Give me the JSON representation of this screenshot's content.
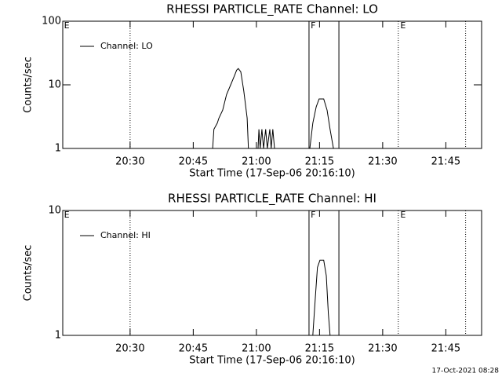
{
  "chart_data": [
    {
      "type": "line",
      "title": "RHESSI PARTICLE_RATE Channel: LO",
      "xlabel": "Start Time (17-Sep-06 20:16:10)",
      "ylabel": "Counts/sec",
      "log_y": true,
      "grid": false,
      "legend": "upper left",
      "xlim": [
        1214,
        1313.5
      ],
      "xticks": [
        {
          "value": 1230,
          "label": "20:30"
        },
        {
          "value": 1245,
          "label": "20:45"
        },
        {
          "value": 1260,
          "label": "21:00"
        },
        {
          "value": 1275,
          "label": "21:15"
        },
        {
          "value": 1290,
          "label": "21:30"
        },
        {
          "value": 1305,
          "label": "21:45"
        }
      ],
      "ylim": [
        1,
        100
      ],
      "yticks": [
        1,
        10,
        100
      ],
      "markers": [
        {
          "x": 1230,
          "style": "dotted"
        },
        {
          "x": 1272.5,
          "style": "solid"
        },
        {
          "x": 1279.6,
          "style": "solid"
        },
        {
          "x": 1293.7,
          "style": "dotted"
        },
        {
          "x": 1309.7,
          "style": "dotted"
        }
      ],
      "annotations": [
        {
          "text": "E",
          "x": 1214.3
        },
        {
          "text": "F",
          "x": 1272.9
        },
        {
          "text": "E",
          "x": 1294.2
        }
      ],
      "series": [
        {
          "name": "Channel: LO",
          "color": "#000000",
          "x": [
            1249.6,
            1249.9,
            1250.7,
            1251.1,
            1252.0,
            1252.9,
            1253.9,
            1254.8,
            1255.3,
            1255.7,
            1256.3,
            1257.0,
            1257.8,
            1258.1,
            1260.4,
            1260.6,
            1260.9,
            1261.3,
            1261.7,
            1262.2,
            1262.6,
            1263.2,
            1263.5,
            1263.9,
            1264.3,
            1272.7,
            1273.4,
            1274.2,
            1274.9,
            1276.0,
            1276.8,
            1277.5,
            1278.3
          ],
          "values": [
            1,
            2,
            2.5,
            3,
            4,
            7,
            10,
            14,
            17,
            18,
            16,
            8,
            3,
            1,
            1,
            2,
            1,
            2,
            1,
            2,
            1,
            2,
            1,
            2,
            1,
            1,
            2.5,
            4.5,
            6,
            6,
            4,
            2,
            1
          ]
        }
      ]
    },
    {
      "type": "line",
      "title": "RHESSI PARTICLE_RATE Channel: HI",
      "xlabel": "Start Time (17-Sep-06 20:16:10)",
      "ylabel": "Counts/sec",
      "log_y": true,
      "grid": false,
      "legend": "upper left",
      "xlim": [
        1214,
        1313.5
      ],
      "xticks": [
        {
          "value": 1230,
          "label": "20:30"
        },
        {
          "value": 1245,
          "label": "20:45"
        },
        {
          "value": 1260,
          "label": "21:00"
        },
        {
          "value": 1275,
          "label": "21:15"
        },
        {
          "value": 1290,
          "label": "21:30"
        },
        {
          "value": 1305,
          "label": "21:45"
        }
      ],
      "ylim": [
        1,
        10
      ],
      "yticks": [
        1,
        10
      ],
      "markers": [
        {
          "x": 1230,
          "style": "dotted"
        },
        {
          "x": 1272.5,
          "style": "solid"
        },
        {
          "x": 1279.6,
          "style": "solid"
        },
        {
          "x": 1293.7,
          "style": "dotted"
        },
        {
          "x": 1309.7,
          "style": "dotted"
        }
      ],
      "annotations": [
        {
          "text": "E",
          "x": 1214.3
        },
        {
          "text": "F",
          "x": 1272.9
        },
        {
          "text": "E",
          "x": 1294.2
        }
      ],
      "series": [
        {
          "name": "Channel: HI",
          "color": "#000000",
          "x": [
            1273.4,
            1274.0,
            1274.5,
            1275.1,
            1276.0,
            1276.6,
            1277.1,
            1277.5
          ],
          "values": [
            1,
            2,
            3.5,
            4,
            4,
            3,
            1.5,
            1
          ]
        }
      ]
    }
  ],
  "footer": "17-Oct-2021 08:28"
}
